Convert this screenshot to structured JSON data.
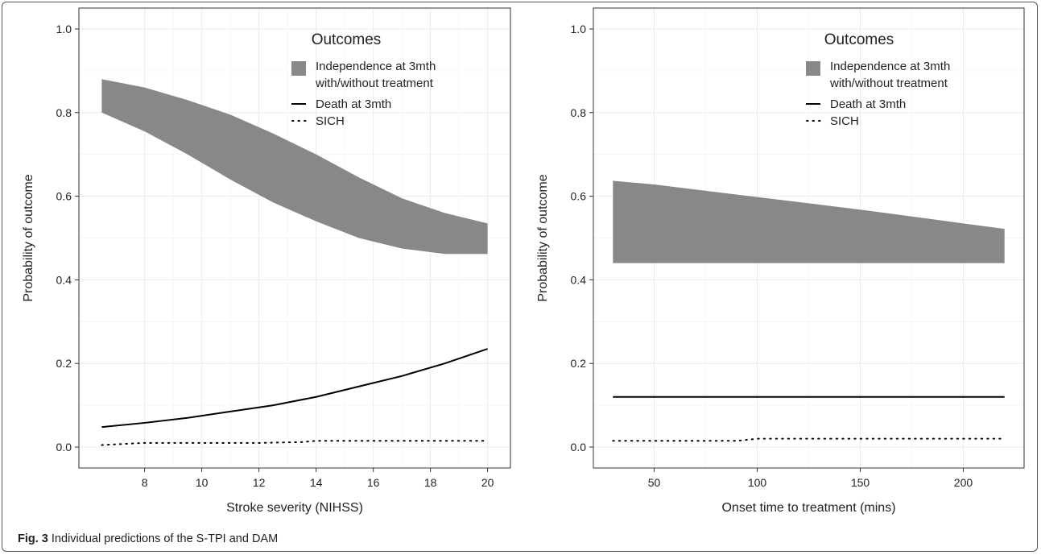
{
  "caption": {
    "label": "Fig. 3",
    "text": "Individual predictions of the S-TPI and DAM"
  },
  "colors": {
    "band": "#888888",
    "line": "#000000",
    "grid": "#ebebeb",
    "axis": "#333333"
  },
  "chart_data": [
    {
      "type": "area",
      "xlabel": "Stroke severity (NIHSS)",
      "ylabel": "Probability of outcome",
      "xlim": [
        5.7,
        20.8
      ],
      "ylim": [
        -0.05,
        1.05
      ],
      "xticks": [
        8,
        10,
        12,
        14,
        16,
        18,
        20
      ],
      "yticks": [
        0.0,
        0.2,
        0.4,
        0.6,
        0.8,
        1.0
      ],
      "grid": true,
      "legend": {
        "title": "Outcomes",
        "position": "top-right",
        "entries": [
          {
            "kind": "band",
            "label_lines": [
              "Independence at 3mth",
              "with/without treatment"
            ]
          },
          {
            "kind": "solid",
            "label_lines": [
              "Death at 3mth"
            ]
          },
          {
            "kind": "dotted",
            "label_lines": [
              "SICH"
            ]
          }
        ]
      },
      "band": {
        "x": [
          6.5,
          8,
          9.5,
          11,
          12.5,
          14,
          15.5,
          17,
          18.5,
          20
        ],
        "upper": [
          0.88,
          0.86,
          0.83,
          0.795,
          0.75,
          0.7,
          0.645,
          0.595,
          0.56,
          0.535
        ],
        "lower": [
          0.8,
          0.755,
          0.7,
          0.64,
          0.585,
          0.54,
          0.5,
          0.475,
          0.462,
          0.462
        ]
      },
      "series": [
        {
          "style": "solid",
          "x": [
            6.5,
            8,
            9.5,
            11,
            12.5,
            14,
            15.5,
            17,
            18.5,
            20
          ],
          "y": [
            0.048,
            0.058,
            0.07,
            0.085,
            0.1,
            0.12,
            0.145,
            0.17,
            0.2,
            0.235
          ]
        },
        {
          "style": "dotted",
          "x": [
            6.5,
            8,
            10,
            12,
            13.5,
            14,
            16,
            18,
            20
          ],
          "y": [
            0.005,
            0.01,
            0.01,
            0.01,
            0.012,
            0.015,
            0.015,
            0.015,
            0.015
          ]
        }
      ]
    },
    {
      "type": "area",
      "xlabel": "Onset time to treatment (mins)",
      "ylabel": "Probability of outcome",
      "xlim": [
        20.5,
        229.5
      ],
      "ylim": [
        -0.05,
        1.05
      ],
      "xticks": [
        50,
        100,
        150,
        200
      ],
      "yticks": [
        0.0,
        0.2,
        0.4,
        0.6,
        0.8,
        1.0
      ],
      "grid": true,
      "legend": {
        "title": "Outcomes",
        "position": "top-right",
        "entries": [
          {
            "kind": "band",
            "label_lines": [
              "Independence at 3mth",
              "with/without treatment"
            ]
          },
          {
            "kind": "solid",
            "label_lines": [
              "Death at 3mth"
            ]
          },
          {
            "kind": "dotted",
            "label_lines": [
              "SICH"
            ]
          }
        ]
      },
      "band": {
        "x": [
          30,
          50,
          100,
          150,
          200,
          220
        ],
        "upper": [
          0.637,
          0.628,
          0.598,
          0.568,
          0.535,
          0.522
        ],
        "lower": [
          0.44,
          0.44,
          0.44,
          0.44,
          0.44,
          0.44
        ]
      },
      "series": [
        {
          "style": "solid",
          "x": [
            30,
            220
          ],
          "y": [
            0.12,
            0.12
          ]
        },
        {
          "style": "dotted",
          "x": [
            30,
            90,
            100,
            220
          ],
          "y": [
            0.015,
            0.015,
            0.02,
            0.02
          ]
        }
      ]
    }
  ]
}
